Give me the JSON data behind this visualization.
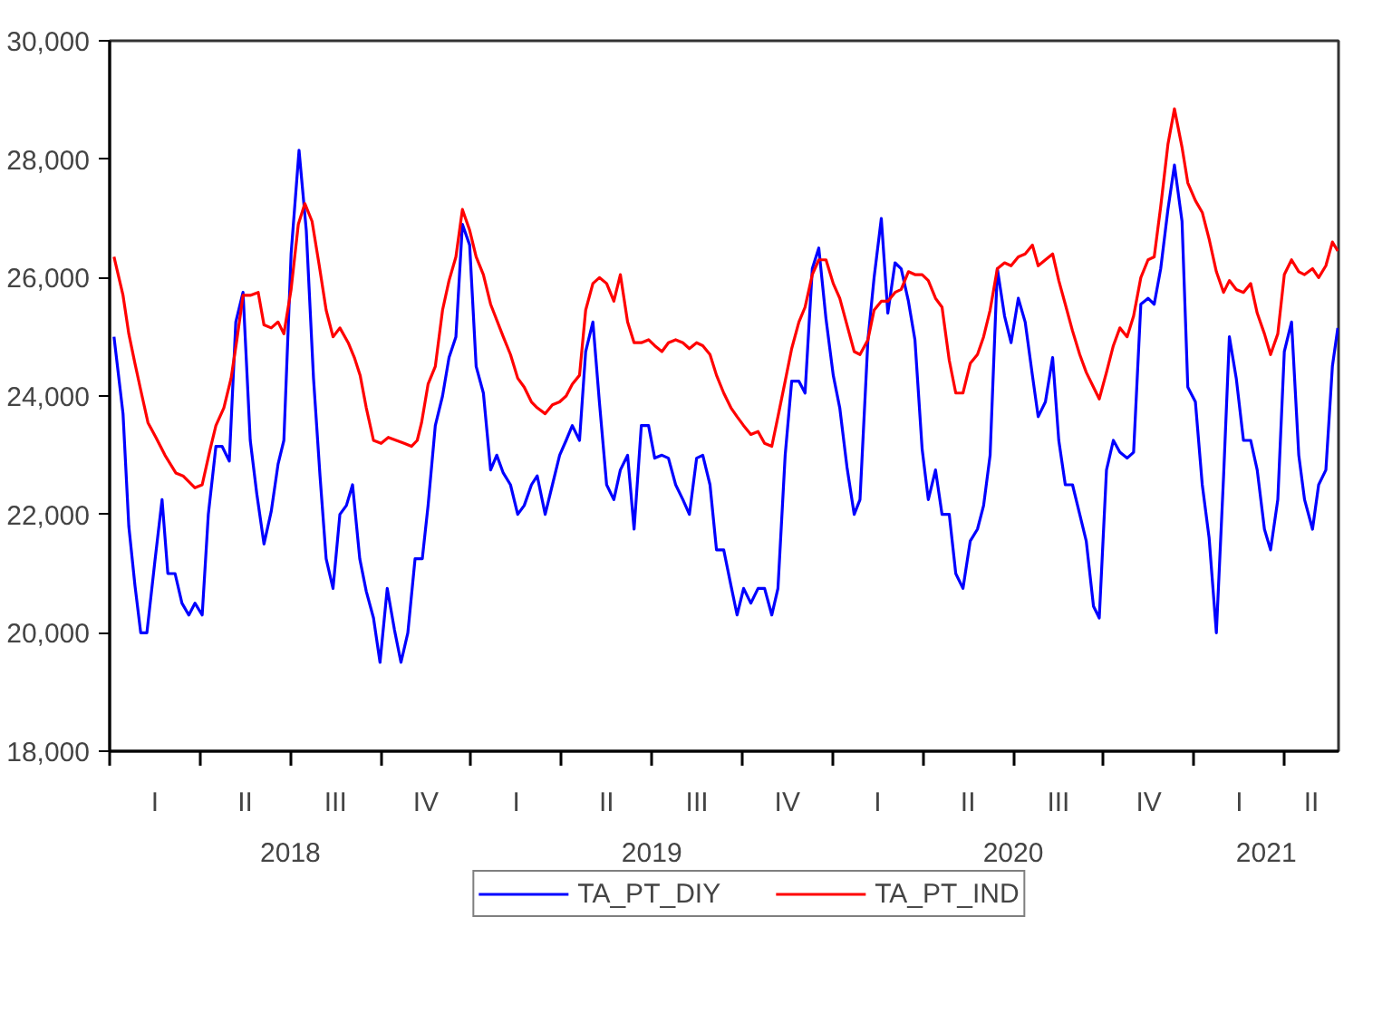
{
  "chart_data": {
    "type": "line",
    "xlim": [
      2018.0,
      2021.4
    ],
    "xticks": [
      {
        "value": 2018.0,
        "label": null
      },
      {
        "value": 2018.25,
        "label": null
      },
      {
        "value": 2018.5,
        "label": null
      },
      {
        "value": 2018.75,
        "label": null
      },
      {
        "value": 2019.0,
        "label": null
      },
      {
        "value": 2019.25,
        "label": null
      },
      {
        "value": 2019.5,
        "label": null
      },
      {
        "value": 2019.75,
        "label": null
      },
      {
        "value": 2020.0,
        "label": null
      },
      {
        "value": 2020.25,
        "label": null
      },
      {
        "value": 2020.5,
        "label": null
      },
      {
        "value": 2020.75,
        "label": null
      },
      {
        "value": 2021.0,
        "label": null
      },
      {
        "value": 2021.25,
        "label": null
      },
      {
        "value": 2018.5,
        "label": "2018"
      },
      {
        "value": 2019.5,
        "label": "2019"
      },
      {
        "value": 2020.5,
        "label": "2020"
      },
      {
        "value": 2021.2,
        "label": "2021"
      }
    ],
    "annotations": [
      "I",
      "II",
      "III",
      "IV",
      "I",
      "II",
      "III",
      "IV",
      "I",
      "II",
      "III",
      "IV",
      "I",
      "II"
    ],
    "ylim": [
      18000,
      30000
    ],
    "yticks": [
      {
        "value": 18000,
        "label": "18,000"
      },
      {
        "value": 20000,
        "label": "20,000"
      },
      {
        "value": 22000,
        "label": "22,000"
      },
      {
        "value": 24000,
        "label": "24,000"
      },
      {
        "value": 26000,
        "label": "26,000"
      },
      {
        "value": 28000,
        "label": "28,000"
      },
      {
        "value": 30000,
        "label": "30,000"
      }
    ],
    "grid": false,
    "legend": "bottom",
    "marker": "none",
    "line_style": "solid",
    "series": [
      {
        "name": "TA_PT_DIY",
        "color": "#0000ff",
        "x": [
          2018.012,
          2018.037,
          2018.053,
          2018.07,
          2018.086,
          2018.103,
          2018.125,
          2018.145,
          2018.161,
          2018.181,
          2018.2,
          2018.219,
          2018.236,
          2018.256,
          2018.273,
          2018.294,
          2018.311,
          2018.331,
          2018.349,
          2018.369,
          2018.389,
          2018.407,
          2018.427,
          2018.447,
          2018.466,
          2018.482,
          2018.502,
          2018.524,
          2018.544,
          2018.564,
          2018.582,
          2018.599,
          2018.618,
          2018.637,
          2018.655,
          2018.672,
          2018.692,
          2018.71,
          2018.73,
          2018.748,
          2018.768,
          2018.788,
          2018.806,
          2018.825,
          2018.845,
          2018.865,
          2018.881,
          2018.901,
          2018.921,
          2018.939,
          2018.958,
          2018.976,
          2018.996,
          2019.014,
          2019.034,
          2019.054,
          2019.071,
          2019.089,
          2019.109,
          2019.129,
          2019.147,
          2019.167,
          2019.183,
          2019.205,
          2019.225,
          2019.245,
          2019.263,
          2019.28,
          2019.3,
          2019.317,
          2019.337,
          2019.355,
          2019.375,
          2019.395,
          2019.413,
          2019.433,
          2019.451,
          2019.471,
          2019.491,
          2019.508,
          2019.528,
          2019.546,
          2019.566,
          2019.586,
          2019.604,
          2019.624,
          2019.641,
          2019.661,
          2019.679,
          2019.699,
          2019.719,
          2019.736,
          2019.754,
          2019.774,
          2019.794,
          2019.812,
          2019.832,
          2019.849,
          2019.869,
          2019.887,
          2019.907,
          2019.924,
          2019.944,
          2019.962,
          2019.982,
          2020.002,
          2020.02,
          2020.04,
          2020.06,
          2020.076,
          2020.098,
          2020.115,
          2020.135,
          2020.153,
          2020.173,
          2020.19,
          2020.21,
          2020.228,
          2020.248,
          2020.265,
          2020.285,
          2020.303,
          2020.323,
          2020.341,
          2020.361,
          2020.381,
          2020.401,
          2020.418,
          2020.436,
          2020.456,
          2020.476,
          2020.494,
          2020.514,
          2020.533,
          2020.553,
          2020.569,
          2020.589,
          2020.609,
          2020.626,
          2020.644,
          2020.664,
          2020.684,
          2020.702,
          2020.722,
          2020.738,
          2020.758,
          2020.777,
          2020.795,
          2020.815,
          2020.833,
          2020.853,
          2020.873,
          2020.89,
          2020.908,
          2020.928,
          2020.946,
          2020.967,
          2020.983,
          2021.004,
          2021.023,
          2021.042,
          2021.062,
          2021.082,
          2021.098,
          2021.117,
          2021.137,
          2021.157,
          2021.175,
          2021.195,
          2021.212,
          2021.232,
          2021.25,
          2021.27,
          2021.29,
          2021.306,
          2021.328,
          2021.345,
          2021.365,
          2021.383,
          2021.398
        ],
        "values": [
          25000,
          23700,
          21800,
          20800,
          20000,
          20000,
          21200,
          22250,
          21000,
          21000,
          20500,
          20300,
          20500,
          20300,
          22000,
          23150,
          23150,
          22900,
          25250,
          25750,
          23250,
          22350,
          21500,
          22050,
          22850,
          23250,
          26400,
          28150,
          26800,
          24300,
          22650,
          21250,
          20750,
          22000,
          22150,
          22500,
          21250,
          20700,
          20250,
          19500,
          20750,
          20050,
          19500,
          20000,
          21250,
          21250,
          22150,
          23500,
          24000,
          24650,
          25000,
          26900,
          26550,
          24500,
          24050,
          22750,
          23000,
          22700,
          22500,
          22000,
          22150,
          22500,
          22650,
          22000,
          22500,
          23000,
          23250,
          23500,
          23250,
          24750,
          25250,
          23900,
          22500,
          22250,
          22750,
          23000,
          21750,
          23500,
          23500,
          22950,
          23000,
          22950,
          22500,
          22250,
          22000,
          22950,
          23000,
          22500,
          21400,
          21400,
          20800,
          20300,
          20750,
          20500,
          20750,
          20750,
          20300,
          20750,
          23000,
          24250,
          24250,
          24050,
          26150,
          26500,
          25300,
          24350,
          23800,
          22800,
          22000,
          22250,
          24950,
          26000,
          27000,
          25400,
          26250,
          26150,
          25600,
          24950,
          23100,
          22250,
          22750,
          22000,
          22000,
          21000,
          20750,
          21550,
          21750,
          22150,
          23000,
          26150,
          25350,
          24900,
          25650,
          25250,
          24350,
          23650,
          23900,
          24650,
          23250,
          22500,
          22500,
          22000,
          21550,
          20450,
          20250,
          22750,
          23250,
          23050,
          22950,
          23050,
          25550,
          25650,
          25550,
          26150,
          27150,
          27900,
          26950,
          24150,
          23900,
          22500,
          21600,
          20000,
          22650,
          25000,
          24300,
          23250,
          23250,
          22750,
          21750,
          21400,
          22250,
          24750,
          25250,
          23000,
          22250,
          21750,
          22500,
          22750,
          24500,
          25150
        ]
      },
      {
        "name": "TA_PT_IND",
        "color": "#ff0000",
        "x": [
          2018.012,
          2018.037,
          2018.053,
          2018.07,
          2018.086,
          2018.106,
          2018.128,
          2018.153,
          2018.183,
          2018.203,
          2018.236,
          2018.256,
          2018.278,
          2018.294,
          2018.316,
          2018.336,
          2018.352,
          2018.369,
          2018.389,
          2018.411,
          2018.427,
          2018.447,
          2018.466,
          2018.482,
          2018.502,
          2018.522,
          2018.54,
          2018.56,
          2018.58,
          2018.599,
          2018.618,
          2018.637,
          2018.66,
          2018.677,
          2018.693,
          2018.71,
          2018.73,
          2018.751,
          2018.771,
          2018.793,
          2018.815,
          2018.835,
          2018.851,
          2018.863,
          2018.881,
          2018.901,
          2018.921,
          2018.939,
          2018.958,
          2018.976,
          2018.996,
          2019.014,
          2019.034,
          2019.054,
          2019.089,
          2019.109,
          2019.129,
          2019.147,
          2019.167,
          2019.183,
          2019.205,
          2019.225,
          2019.245,
          2019.263,
          2019.28,
          2019.3,
          2019.317,
          2019.337,
          2019.355,
          2019.375,
          2019.395,
          2019.413,
          2019.433,
          2019.451,
          2019.471,
          2019.491,
          2019.508,
          2019.528,
          2019.546,
          2019.566,
          2019.586,
          2019.604,
          2019.624,
          2019.641,
          2019.661,
          2019.679,
          2019.699,
          2019.719,
          2019.736,
          2019.754,
          2019.774,
          2019.794,
          2019.812,
          2019.832,
          2019.849,
          2019.869,
          2019.887,
          2019.907,
          2019.924,
          2019.944,
          2019.962,
          2019.982,
          2020.002,
          2020.02,
          2020.04,
          2020.06,
          2020.076,
          2020.098,
          2020.115,
          2020.135,
          2020.153,
          2020.173,
          2020.19,
          2020.21,
          2020.228,
          2020.248,
          2020.265,
          2020.285,
          2020.303,
          2020.323,
          2020.341,
          2020.361,
          2020.381,
          2020.401,
          2020.418,
          2020.436,
          2020.456,
          2020.476,
          2020.494,
          2020.514,
          2020.533,
          2020.553,
          2020.569,
          2020.589,
          2020.609,
          2020.626,
          2020.644,
          2020.664,
          2020.684,
          2020.702,
          2020.722,
          2020.738,
          2020.758,
          2020.777,
          2020.795,
          2020.815,
          2020.833,
          2020.853,
          2020.873,
          2020.89,
          2020.908,
          2020.928,
          2020.946,
          2020.967,
          2020.983,
          2021.004,
          2021.023,
          2021.042,
          2021.062,
          2021.082,
          2021.098,
          2021.117,
          2021.137,
          2021.157,
          2021.175,
          2021.195,
          2021.212,
          2021.232,
          2021.25,
          2021.27,
          2021.29,
          2021.306,
          2021.328,
          2021.345,
          2021.365,
          2021.383,
          2021.398
        ],
        "values": [
          26350,
          25700,
          25050,
          24550,
          24100,
          23550,
          23300,
          23000,
          22700,
          22650,
          22450,
          22500,
          23100,
          23500,
          23800,
          24300,
          24950,
          25700,
          25700,
          25750,
          25200,
          25150,
          25250,
          25050,
          25800,
          26900,
          27250,
          26950,
          26200,
          25450,
          25000,
          25150,
          24900,
          24650,
          24350,
          23800,
          23250,
          23200,
          23300,
          23250,
          23200,
          23150,
          23250,
          23550,
          24200,
          24500,
          25450,
          25950,
          26350,
          27150,
          26800,
          26350,
          26050,
          25550,
          25000,
          24700,
          24300,
          24150,
          23900,
          23800,
          23700,
          23850,
          23900,
          24000,
          24200,
          24350,
          25450,
          25900,
          26000,
          25900,
          25600,
          26050,
          25250,
          24900,
          24900,
          24950,
          24850,
          24750,
          24900,
          24950,
          24900,
          24800,
          24900,
          24850,
          24700,
          24350,
          24050,
          23800,
          23650,
          23500,
          23350,
          23400,
          23200,
          23150,
          23650,
          24250,
          24800,
          25250,
          25500,
          26050,
          26300,
          26300,
          25900,
          25650,
          25200,
          24750,
          24700,
          24950,
          25450,
          25600,
          25600,
          25750,
          25800,
          26100,
          26050,
          26050,
          25950,
          25650,
          25500,
          24600,
          24050,
          24050,
          24550,
          24700,
          25000,
          25450,
          26150,
          26250,
          26200,
          26350,
          26400,
          26550,
          26200,
          26300,
          26400,
          25950,
          25550,
          25100,
          24700,
          24400,
          24150,
          23950,
          24400,
          24850,
          25150,
          25000,
          25350,
          26000,
          26300,
          26350,
          27200,
          28250,
          28850,
          28200,
          27600,
          27300,
          27100,
          26650,
          26100,
          25750,
          25950,
          25800,
          25750,
          25900,
          25400,
          25050,
          24700,
          25050,
          26050,
          26300,
          26100,
          26050,
          26150,
          26000,
          26200,
          26600,
          26450
        ]
      }
    ]
  }
}
